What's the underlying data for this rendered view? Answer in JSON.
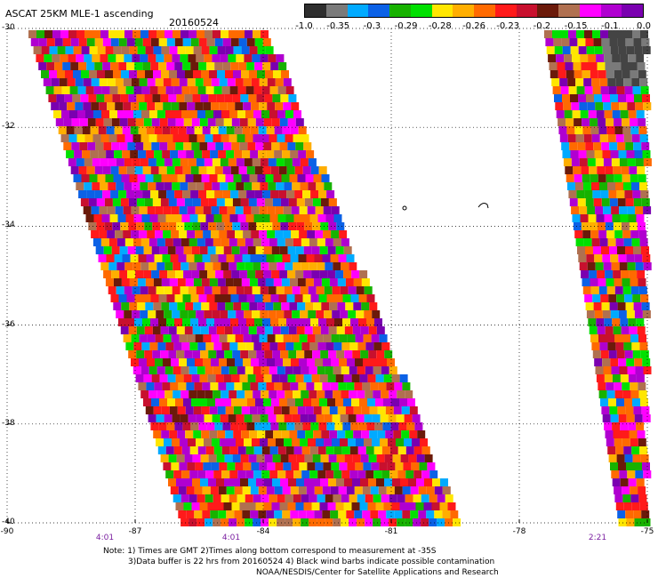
{
  "title": "ASCAT 25KM MLE-1 ascending",
  "date": "20160524",
  "colorbar": {
    "labels": [
      "-1.0",
      "-0.35",
      "-0.3",
      "-0.29",
      "-0.28",
      "-0.26",
      "-0.23",
      "-0.2",
      "-0.15",
      "-0.1",
      "0.0"
    ],
    "colors": [
      "#2e2e2e",
      "#7a7a7a",
      "#00aaff",
      "#0b61e6",
      "#17b200",
      "#00e000",
      "#ffe600",
      "#ffae00",
      "#ff6a00",
      "#ff1a1a",
      "#c8102e",
      "#6b1a0a",
      "#b07050",
      "#ff00ff",
      "#b000d0",
      "#7a00b0"
    ]
  },
  "lat_labels": [
    "-30",
    "-32",
    "-34",
    "-36",
    "-38",
    "-40"
  ],
  "lon_labels": [
    "-90",
    "-87",
    "-84",
    "-81",
    "-78",
    "-75"
  ],
  "time_labels": [
    "4:01",
    "4:01",
    "2:21"
  ],
  "notes": [
    "Note: 1) Times are GMT 2)Times along bottom correspond to measurement at -35S",
    "3)Data buffer is 22 hrs from 20160524 4) Black wind barbs indicate possible contamination",
    "NOAA/NESDIS/Center for Satellite Applications and Research"
  ]
}
